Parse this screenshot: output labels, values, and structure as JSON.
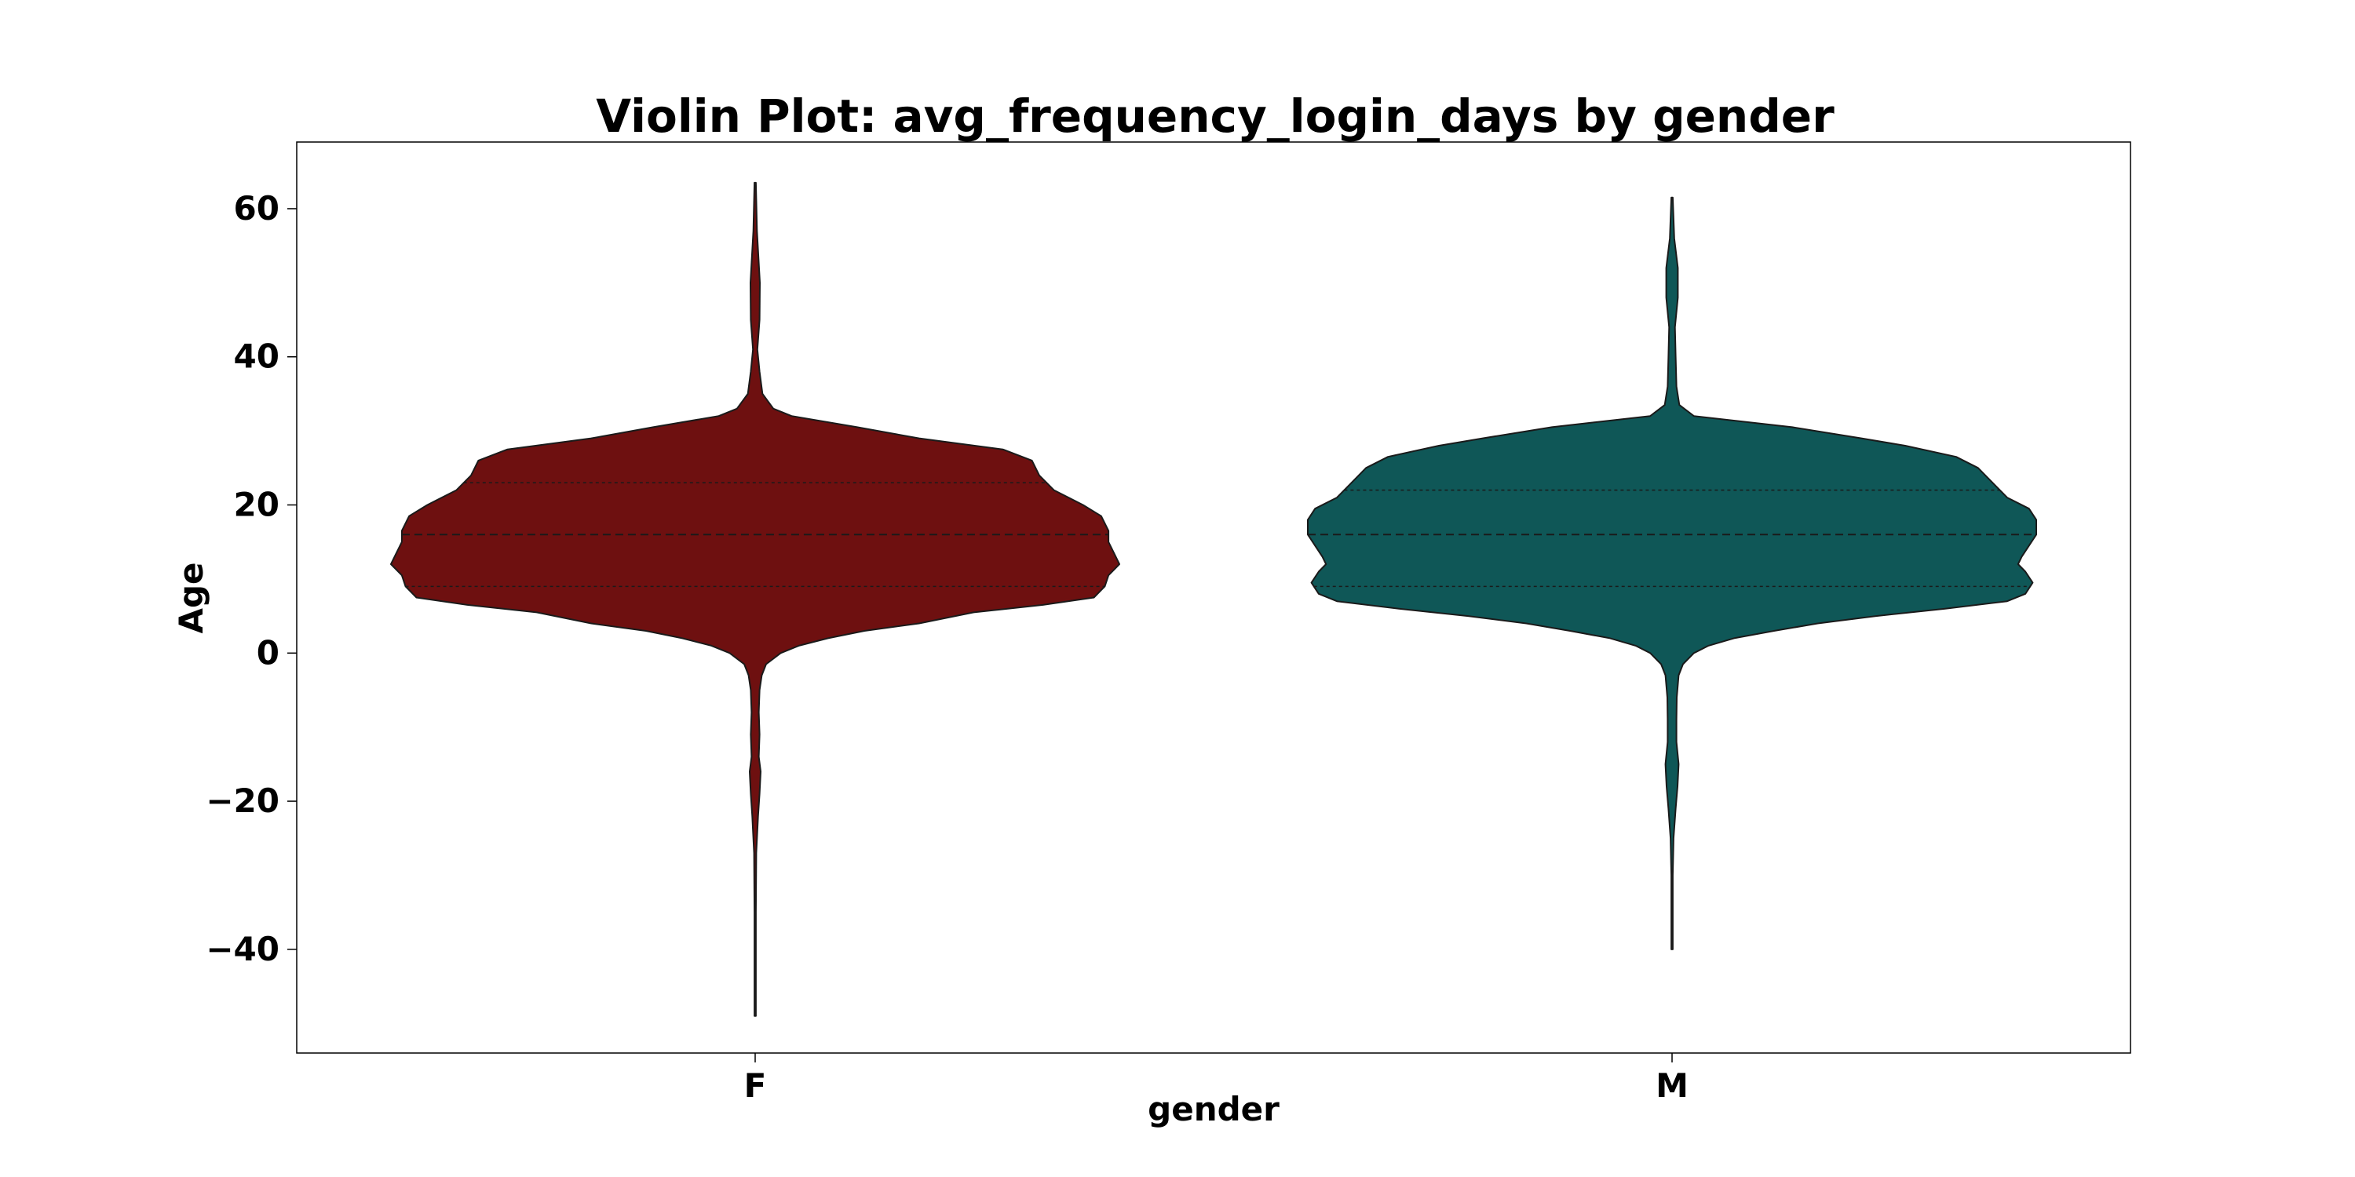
{
  "chart_data": {
    "type": "violin",
    "title": "Violin Plot: avg_frequency_login_days by gender",
    "xlabel": "gender",
    "ylabel": "Age",
    "ylim": [
      -54,
      69
    ],
    "yticks": [
      -40,
      -20,
      0,
      20,
      40,
      60
    ],
    "ytick_labels": [
      "−40",
      "−20",
      "0",
      "20",
      "40",
      "60"
    ],
    "grid": false,
    "legend": "none",
    "categories": [
      "F",
      "M"
    ],
    "series": [
      {
        "category": "F",
        "color": "#6e1010",
        "min": -49,
        "max": 63.5,
        "quartiles": [
          9,
          16,
          23
        ],
        "profile": [
          [
            63.5,
            0.002
          ],
          [
            57,
            0.005
          ],
          [
            50,
            0.013
          ],
          [
            45,
            0.012
          ],
          [
            41,
            0.006
          ],
          [
            38,
            0.012
          ],
          [
            35,
            0.02
          ],
          [
            33,
            0.05
          ],
          [
            32,
            0.1
          ],
          [
            30.5,
            0.28
          ],
          [
            29,
            0.45
          ],
          [
            27.5,
            0.68
          ],
          [
            26,
            0.76
          ],
          [
            24,
            0.78
          ],
          [
            22,
            0.82
          ],
          [
            20,
            0.9
          ],
          [
            18.5,
            0.95
          ],
          [
            16.5,
            0.97
          ],
          [
            15,
            0.97
          ],
          [
            13,
            0.99
          ],
          [
            12,
            1.0
          ],
          [
            10.5,
            0.97
          ],
          [
            9,
            0.96
          ],
          [
            7.5,
            0.93
          ],
          [
            6.5,
            0.79
          ],
          [
            5.5,
            0.6
          ],
          [
            4,
            0.45
          ],
          [
            3,
            0.3
          ],
          [
            2,
            0.2
          ],
          [
            1,
            0.12
          ],
          [
            0,
            0.07
          ],
          [
            -1.5,
            0.03
          ],
          [
            -3,
            0.018
          ],
          [
            -5,
            0.012
          ],
          [
            -8,
            0.01
          ],
          [
            -11,
            0.012
          ],
          [
            -14,
            0.01
          ],
          [
            -16,
            0.015
          ],
          [
            -19,
            0.012
          ],
          [
            -22,
            0.008
          ],
          [
            -27,
            0.003
          ],
          [
            -35,
            0.002
          ],
          [
            -49,
            0.002
          ]
        ]
      },
      {
        "category": "M",
        "color": "#0f5757",
        "min": -40,
        "max": 61.5,
        "quartiles": [
          9,
          16,
          22
        ],
        "profile": [
          [
            61.5,
            0.002
          ],
          [
            56,
            0.006
          ],
          [
            52,
            0.016
          ],
          [
            48,
            0.016
          ],
          [
            44,
            0.008
          ],
          [
            40,
            0.01
          ],
          [
            36,
            0.012
          ],
          [
            33.5,
            0.02
          ],
          [
            32,
            0.06
          ],
          [
            30.5,
            0.33
          ],
          [
            29,
            0.52
          ],
          [
            28,
            0.64
          ],
          [
            26.5,
            0.78
          ],
          [
            25,
            0.84
          ],
          [
            23,
            0.88
          ],
          [
            21,
            0.92
          ],
          [
            19.5,
            0.98
          ],
          [
            18,
            1.0
          ],
          [
            17,
            1.0
          ],
          [
            16,
            1.0
          ],
          [
            14.5,
            0.98
          ],
          [
            13,
            0.96
          ],
          [
            12,
            0.95
          ],
          [
            11,
            0.97
          ],
          [
            9.5,
            0.99
          ],
          [
            8,
            0.97
          ],
          [
            7,
            0.92
          ],
          [
            6,
            0.75
          ],
          [
            5,
            0.56
          ],
          [
            4,
            0.4
          ],
          [
            3,
            0.28
          ],
          [
            2,
            0.17
          ],
          [
            1,
            0.1
          ],
          [
            0,
            0.06
          ],
          [
            -1.5,
            0.03
          ],
          [
            -3,
            0.018
          ],
          [
            -6,
            0.013
          ],
          [
            -9,
            0.012
          ],
          [
            -12,
            0.012
          ],
          [
            -15,
            0.018
          ],
          [
            -18,
            0.015
          ],
          [
            -21,
            0.01
          ],
          [
            -25,
            0.004
          ],
          [
            -30,
            0.002
          ],
          [
            -40,
            0.002
          ]
        ]
      }
    ]
  }
}
